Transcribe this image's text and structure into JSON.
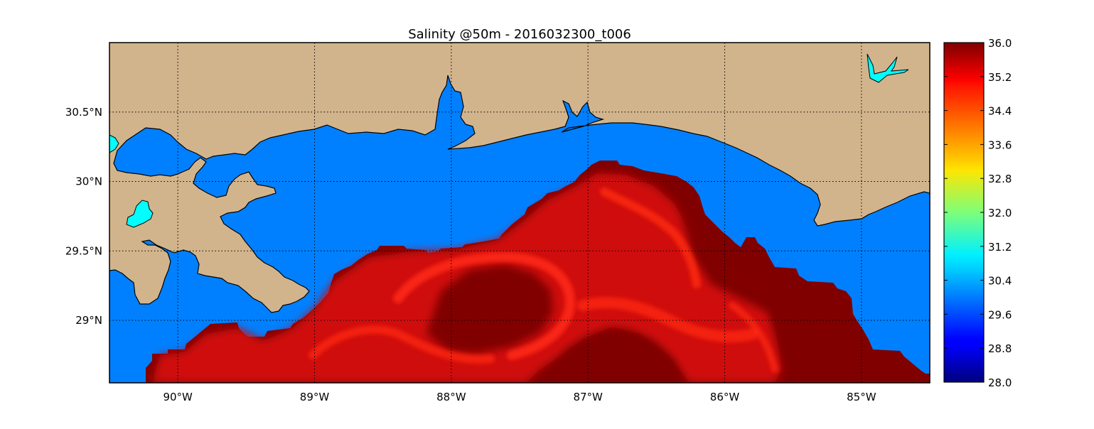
{
  "title": "Salinity @50m - 2016032300_t006",
  "map": {
    "lon_range": [
      -90.5,
      -84.5
    ],
    "lat_range": [
      28.55,
      31.0
    ],
    "gridlines": true,
    "lon_ticks": [
      {
        "value": -90,
        "label": "90°W"
      },
      {
        "value": -89,
        "label": "89°W"
      },
      {
        "value": -88,
        "label": "88°W"
      },
      {
        "value": -87,
        "label": "87°W"
      },
      {
        "value": -86,
        "label": "86°W"
      },
      {
        "value": -85,
        "label": "85°W"
      }
    ],
    "lat_ticks": [
      {
        "value": 30.5,
        "label": "30.5°N"
      },
      {
        "value": 30.0,
        "label": "30°N"
      },
      {
        "value": 29.5,
        "label": "29.5°N"
      },
      {
        "value": 29.0,
        "label": "29°N"
      }
    ],
    "colors": {
      "land": "#d2b48c",
      "water_low": "#0080ff",
      "lake": "#00ffff",
      "salinity_high": "#800000",
      "salinity_mid": "#d01010",
      "salinity_streak": "#ff2a14"
    }
  },
  "colorbar": {
    "colormap": "jet",
    "min": 28.0,
    "max": 36.0,
    "ticks": [
      "28.0",
      "28.8",
      "29.6",
      "30.4",
      "31.2",
      "32.0",
      "32.8",
      "33.6",
      "34.4",
      "35.2",
      "36.0"
    ]
  }
}
